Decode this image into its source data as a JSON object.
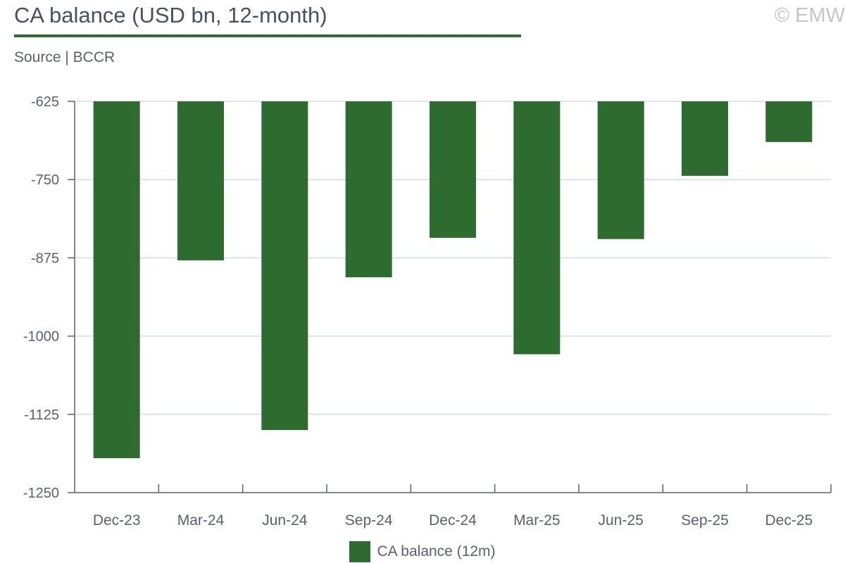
{
  "title": "CA balance (USD bn, 12-month)",
  "source": "Source | BCCR",
  "copyright": "© EMW",
  "colors": {
    "bar": "#2e6b2e",
    "title_rule": "#2e6b2e",
    "grid": "#dde3ec",
    "axis": "#5b6070",
    "text": "#5b6070"
  },
  "chart_data": {
    "type": "bar",
    "categories": [
      "Dec-23",
      "Mar-24",
      "Jun-24",
      "Sep-24",
      "Dec-24",
      "Mar-25",
      "Jun-25",
      "Sep-25",
      "Dec-25"
    ],
    "series": [
      {
        "name": "CA balance (12m)",
        "values": [
          -1195,
          -879,
          -1150,
          -906,
          -843,
          -1029,
          -845,
          -744,
          -690
        ]
      }
    ],
    "ylim": [
      -1250,
      -625
    ],
    "yticks": [
      -625,
      -750,
      -875,
      -1000,
      -1125,
      -1250
    ],
    "grid": true,
    "legend_position": "bottom-center",
    "xlabel": "",
    "ylabel": ""
  }
}
